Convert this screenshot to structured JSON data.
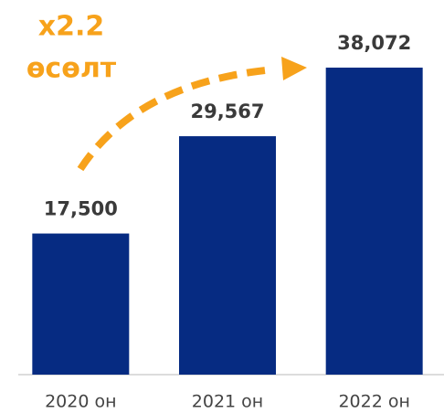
{
  "chart_data": {
    "type": "bar",
    "categories": [
      "2020 он",
      "2021 он",
      "2022 он"
    ],
    "values": [
      17500,
      29567,
      38072
    ],
    "value_labels": [
      "17,500",
      "29,567",
      "38,072"
    ],
    "color": "#062b82",
    "ylim": [
      0,
      40000
    ],
    "annotations": [
      "x2.2",
      "өсөлт"
    ],
    "annotation_color": "#f7a21b"
  }
}
